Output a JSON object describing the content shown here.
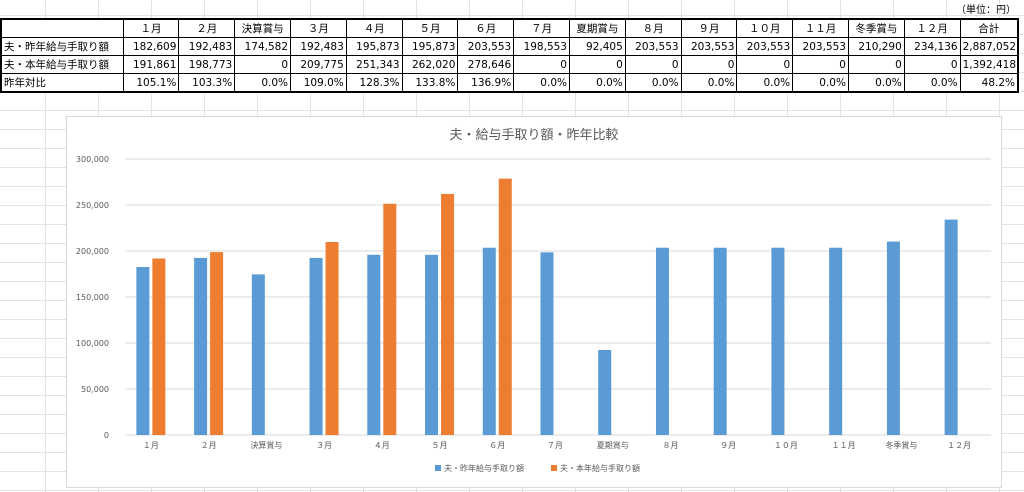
{
  "unit_note": "（単位：円）",
  "table": {
    "headers": [
      "",
      "１月",
      "２月",
      "決算賞与",
      "３月",
      "４月",
      "５月",
      "６月",
      "７月",
      "夏期賞与",
      "８月",
      "９月",
      "１０月",
      "１１月",
      "冬季賞与",
      "１２月",
      "合計"
    ],
    "rows": [
      {
        "label": "夫・昨年給与手取り額",
        "cells": [
          "182,609",
          "192,483",
          "174,582",
          "192,483",
          "195,873",
          "195,873",
          "203,553",
          "198,553",
          "92,405",
          "203,553",
          "203,553",
          "203,553",
          "203,553",
          "210,290",
          "234,136",
          "2,887,052"
        ]
      },
      {
        "label": "夫・本年給与手取り額",
        "cells": [
          "191,861",
          "198,773",
          "0",
          "209,775",
          "251,343",
          "262,020",
          "278,646",
          "0",
          "0",
          "0",
          "0",
          "0",
          "0",
          "0",
          "0",
          "1,392,418"
        ]
      },
      {
        "label": "昨年対比",
        "cells": [
          "105.1%",
          "103.3%",
          "0.0%",
          "109.0%",
          "128.3%",
          "133.8%",
          "136.9%",
          "0.0%",
          "0.0%",
          "0.0%",
          "0.0%",
          "0.0%",
          "0.0%",
          "0.0%",
          "0.0%",
          "48.2%"
        ]
      }
    ]
  },
  "chart_data": {
    "type": "bar",
    "title": "夫・給与手取り額・昨年比較",
    "categories": [
      "１月",
      "２月",
      "決算賞与",
      "３月",
      "４月",
      "５月",
      "６月",
      "７月",
      "夏期賞与",
      "８月",
      "９月",
      "１０月",
      "１１月",
      "冬季賞与",
      "１２月"
    ],
    "series": [
      {
        "name": "夫・昨年給与手取り額",
        "color": "#5b9bd5",
        "values": [
          182609,
          192483,
          174582,
          192483,
          195873,
          195873,
          203553,
          198553,
          92405,
          203553,
          203553,
          203553,
          203553,
          210290,
          234136
        ]
      },
      {
        "name": "夫・本年給与手取り額",
        "color": "#ed7d31",
        "values": [
          191861,
          198773,
          0,
          209775,
          251343,
          262020,
          278646,
          0,
          0,
          0,
          0,
          0,
          0,
          0,
          0
        ]
      }
    ],
    "ylim": [
      0,
      300000
    ],
    "yticks": [
      0,
      50000,
      100000,
      150000,
      200000,
      250000,
      300000
    ],
    "ytick_labels": [
      "0",
      "50,000",
      "100,000",
      "150,000",
      "200,000",
      "250,000",
      "300,000"
    ],
    "grid": true,
    "legend_position": "bottom",
    "gridline_color": "#d9d9d9"
  }
}
